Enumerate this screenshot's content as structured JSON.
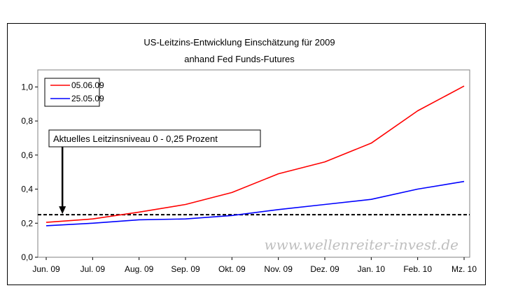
{
  "chart_data": {
    "type": "line",
    "title": [
      "US-Leitzins-Entwicklung Einschätzung für 2009",
      "anhand Fed Funds-Futures"
    ],
    "categories": [
      "Jun. 09",
      "Jul. 09",
      "Aug. 09",
      "Sep. 09",
      "Okt. 09",
      "Nov. 09",
      "Dez. 09",
      "Jan. 10",
      "Feb. 10",
      "Mz. 10"
    ],
    "series": [
      {
        "name": "05.06.09",
        "color": "#ff0000",
        "values": [
          0.205,
          0.225,
          0.265,
          0.31,
          0.38,
          0.49,
          0.56,
          0.67,
          0.86,
          1.005
        ]
      },
      {
        "name": "25.05.09",
        "color": "#0000ff",
        "values": [
          0.185,
          0.2,
          0.22,
          0.225,
          0.245,
          0.28,
          0.31,
          0.34,
          0.4,
          0.445
        ]
      }
    ],
    "reference_line": {
      "value": 0.25,
      "style": "dashed",
      "color": "#000000"
    },
    "annotation": {
      "text": "Aktuelles Leitzinsniveau 0 - 0,25 Prozent",
      "arrow_at_x": 0.5
    },
    "y_ticks": [
      "0,0",
      "0,2",
      "0,4",
      "0,6",
      "0,8",
      "1,0"
    ],
    "ylim": [
      0,
      1.1
    ],
    "grid": false,
    "legend": "top-left",
    "watermark": "www.wellenreiter-invest.de"
  }
}
